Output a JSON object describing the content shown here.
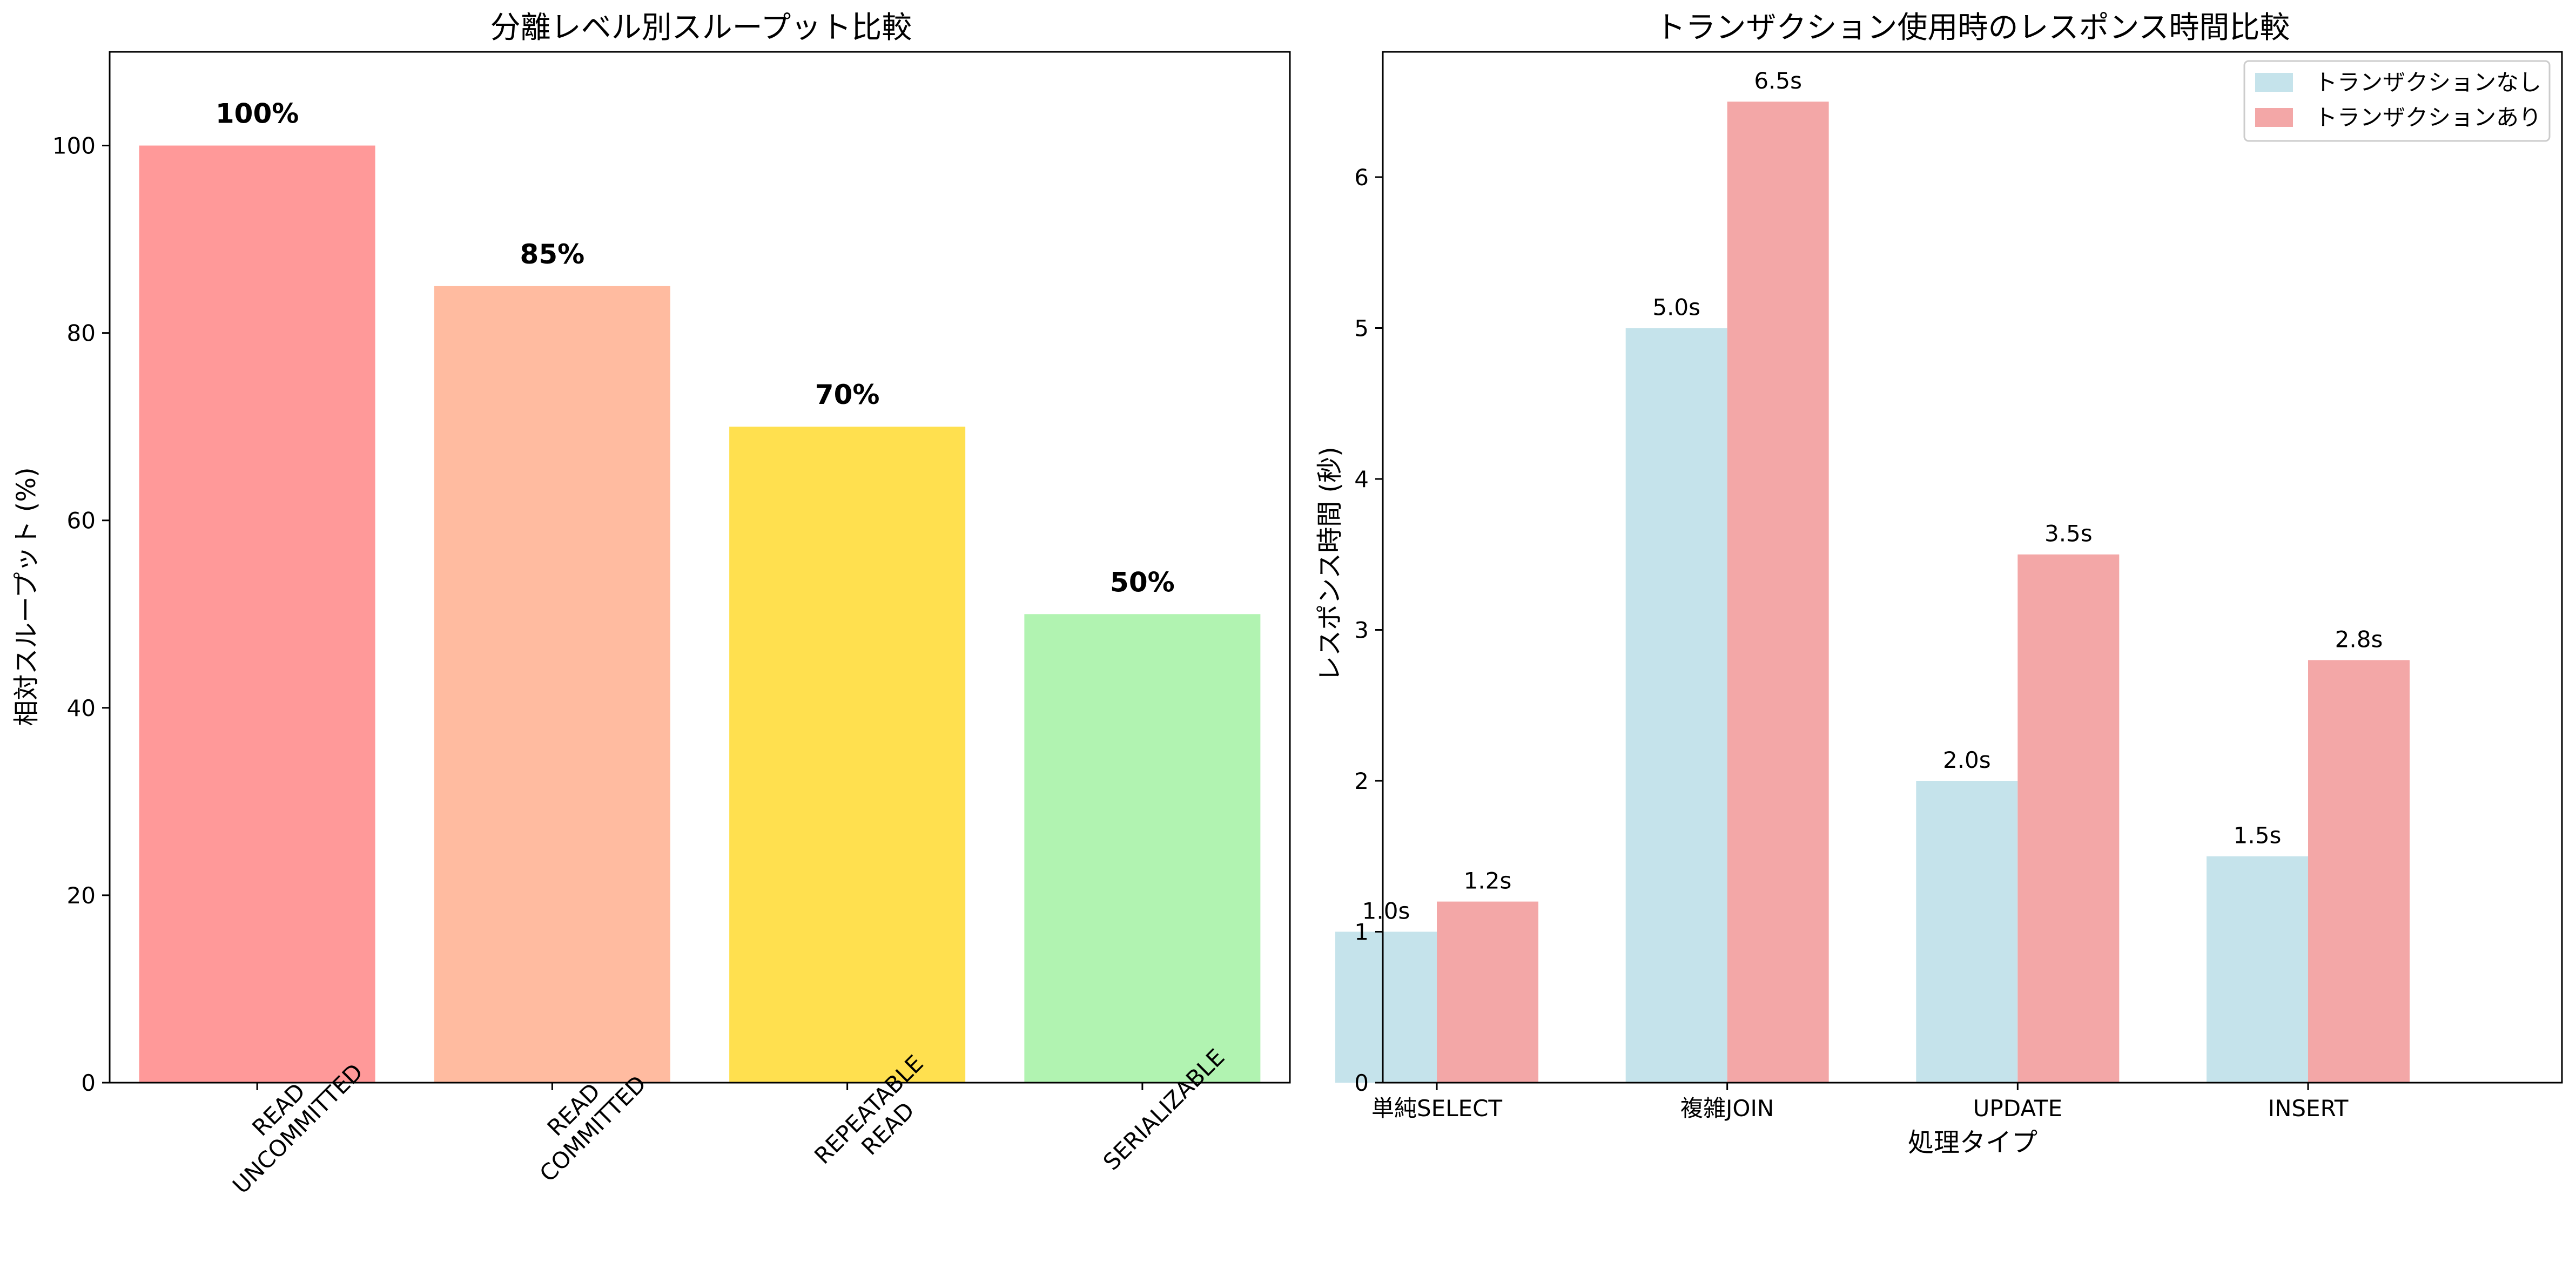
{
  "chart_data": [
    {
      "type": "bar",
      "title": "分離レベル別スループット比較",
      "xlabel": "",
      "ylabel": "相対スループット (%)",
      "categories": [
        "READ\nUNCOMMITTED",
        "READ\nCOMMITTED",
        "REPEATABLE\nREAD",
        "SERIALIZABLE"
      ],
      "values": [
        100,
        85,
        70,
        50
      ],
      "value_labels": [
        "100%",
        "85%",
        "70%",
        "50%"
      ],
      "colors": [
        "#ff9999",
        "#ffbba0",
        "#ffe04f",
        "#b1f3b1"
      ],
      "yticks": [
        0,
        20,
        40,
        60,
        80,
        100
      ],
      "ylim": [
        0,
        110
      ],
      "grid": false
    },
    {
      "type": "bar",
      "title": "トランザクション使用時のレスポンス時間比較",
      "xlabel": "処理タイプ",
      "ylabel": "レスポンス時間 (秒)",
      "categories": [
        "単純SELECT",
        "複雑JOIN",
        "UPDATE",
        "INSERT"
      ],
      "series": [
        {
          "name": "トランザクションなし",
          "values": [
            1.0,
            5.0,
            2.0,
            1.5
          ],
          "labels": [
            "1.0s",
            "5.0s",
            "2.0s",
            "1.5s"
          ],
          "color": "#c5e3eb"
        },
        {
          "name": "トランザクションあり",
          "values": [
            1.2,
            6.5,
            3.5,
            2.8
          ],
          "labels": [
            "1.2s",
            "6.5s",
            "3.5s",
            "2.8s"
          ],
          "color": "#f3a7a7"
        }
      ],
      "yticks": [
        0,
        1,
        2,
        3,
        4,
        5,
        6
      ],
      "ylim": [
        0,
        6.83
      ],
      "legend": "top-right",
      "grid": false
    }
  ]
}
